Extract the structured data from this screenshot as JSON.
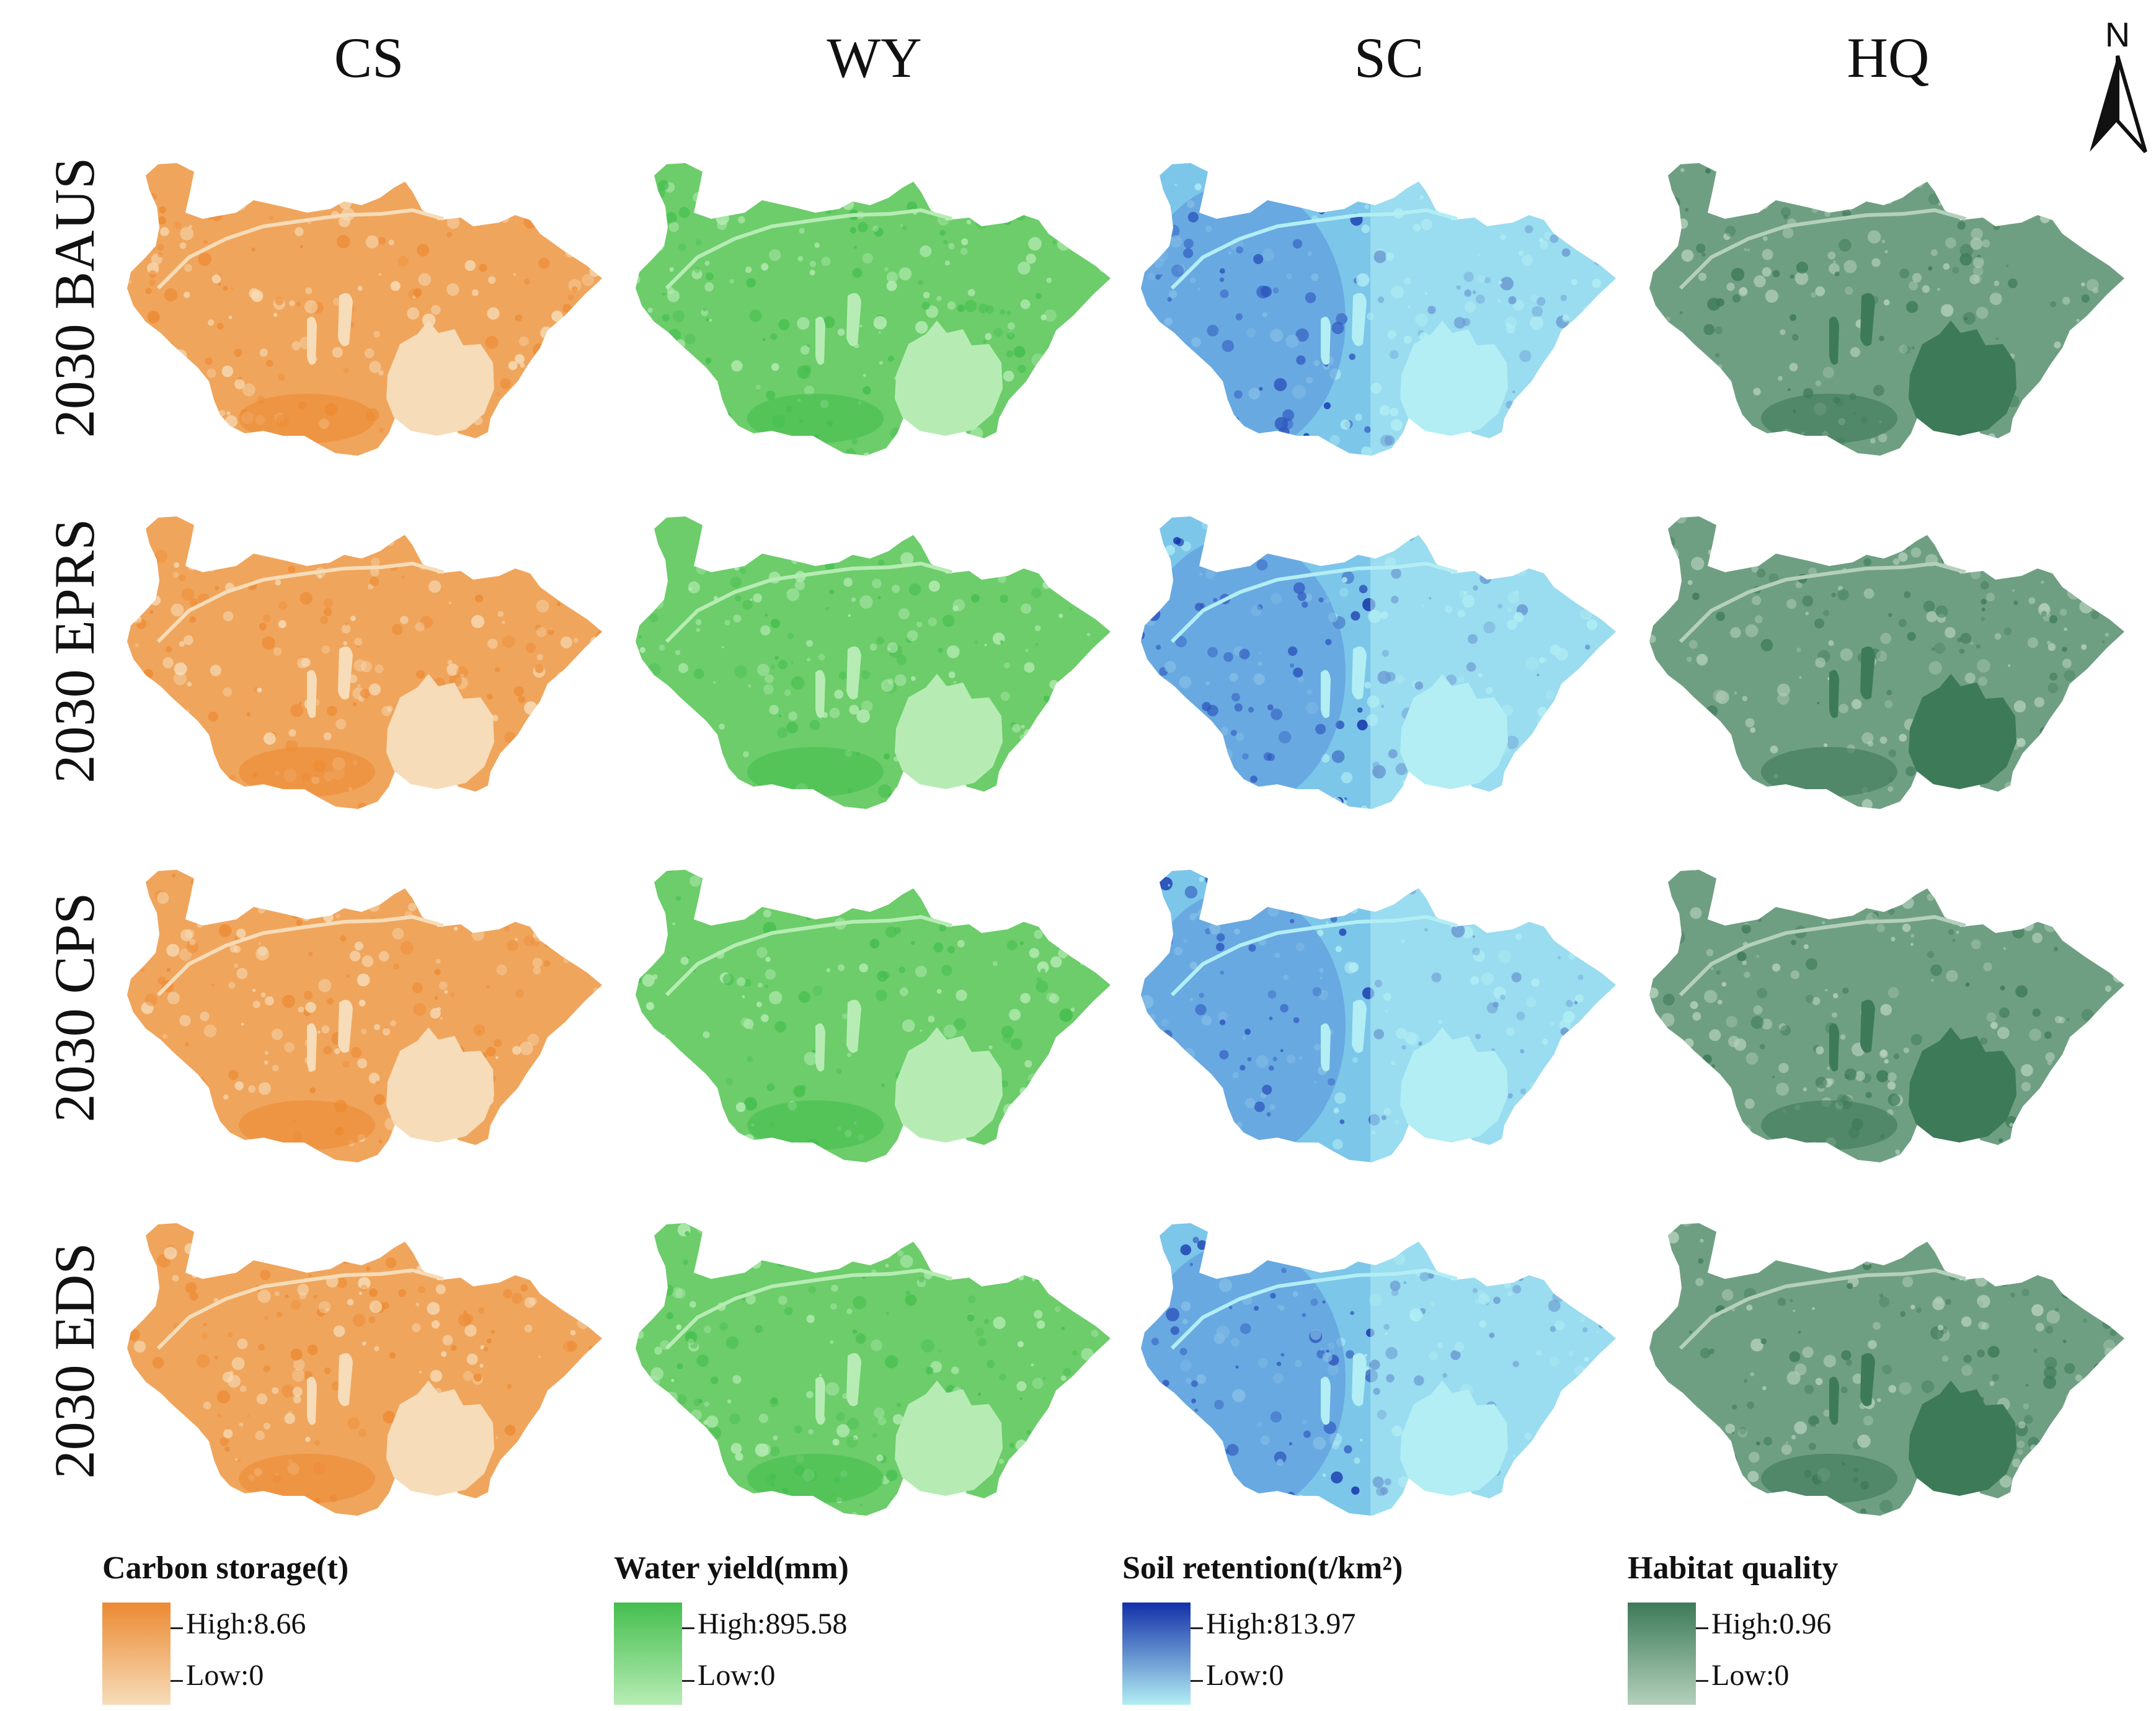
{
  "columns": [
    {
      "key": "cs",
      "title": "CS"
    },
    {
      "key": "wy",
      "title": "WY"
    },
    {
      "key": "sc",
      "title": "SC"
    },
    {
      "key": "hq",
      "title": "HQ"
    }
  ],
  "rows": [
    {
      "label": "2030 BAUS"
    },
    {
      "label": "2030 EPRS"
    },
    {
      "label": "2030 CPS"
    },
    {
      "label": "2030 EDS"
    }
  ],
  "north_arrow": {
    "label": "N"
  },
  "legends": [
    {
      "title": "Carbon storage(t)",
      "high": "High:8.66",
      "low": "Low:0",
      "color_high": "#ec8a33",
      "color_low": "#f6dcb8",
      "color_mid": "#f0a55c"
    },
    {
      "title": "Water yield(mm)",
      "high": "High:895.58",
      "low": "Low:0",
      "color_high": "#45be4e",
      "color_low": "#b6ecb4",
      "color_mid": "#6ccd6a"
    },
    {
      "title": "Soil retention(t/km²)",
      "high": "High:813.97",
      "low": "Low:0",
      "color_high": "#1230a8",
      "color_low": "#b2eef4",
      "color_mid": "#7cc6ea"
    },
    {
      "title": "Habitat quality",
      "high": "High:0.96",
      "low": "Low:0",
      "color_high": "#3d7a58",
      "color_low": "#b4d0bc",
      "color_mid": "#6f9f82"
    }
  ]
}
